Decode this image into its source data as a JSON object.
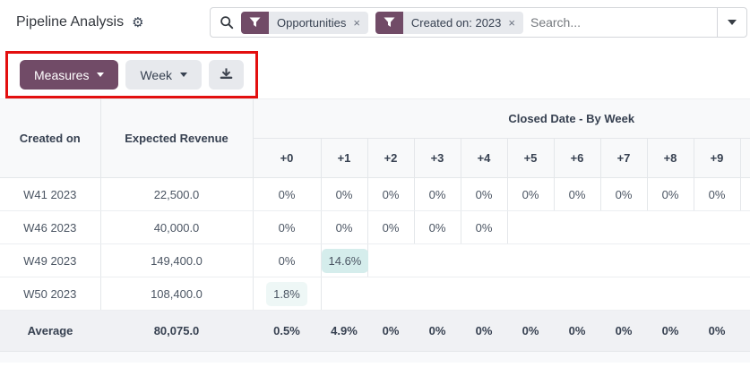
{
  "header": {
    "title": "Pipeline Analysis",
    "search": {
      "placeholder": "Search...",
      "facets": [
        {
          "label": "Opportunities",
          "remove": "×"
        },
        {
          "label": "Created on: 2023",
          "remove": "×"
        }
      ]
    }
  },
  "toolbar": {
    "measures_label": "Measures",
    "period_label": "Week"
  },
  "table": {
    "col1_header": "Created on",
    "col2_header": "Expected Revenue",
    "group_header": "Closed Date - By Week",
    "period_headers": [
      "+0",
      "+1",
      "+2",
      "+3",
      "+4",
      "+5",
      "+6",
      "+7",
      "+8",
      "+9"
    ],
    "rows": [
      {
        "label": "W41 2023",
        "revenue": "22,500.0",
        "cells": [
          "0%",
          "0%",
          "0%",
          "0%",
          "0%",
          "0%",
          "0%",
          "0%",
          "0%",
          "0%"
        ]
      },
      {
        "label": "W46 2023",
        "revenue": "40,000.0",
        "cells": [
          "0%",
          "0%",
          "0%",
          "0%",
          "0%"
        ]
      },
      {
        "label": "W49 2023",
        "revenue": "149,400.0",
        "cells": [
          "0%",
          {
            "v": "14.6%",
            "hl": "strong"
          }
        ]
      },
      {
        "label": "W50 2023",
        "revenue": "108,400.0",
        "cells": [
          {
            "v": "1.8%",
            "hl": "light"
          }
        ]
      }
    ],
    "average": {
      "label": "Average",
      "revenue": "80,075.0",
      "cells": [
        "0.5%",
        "4.9%",
        "0%",
        "0%",
        "0%",
        "0%",
        "0%",
        "0%",
        "0%",
        "0%"
      ]
    }
  },
  "colors": {
    "accent_purple": "#714B67",
    "annotation_red": "#e30f0f",
    "highlight_strong": "#d5edec",
    "highlight_light": "#eef7f6"
  }
}
